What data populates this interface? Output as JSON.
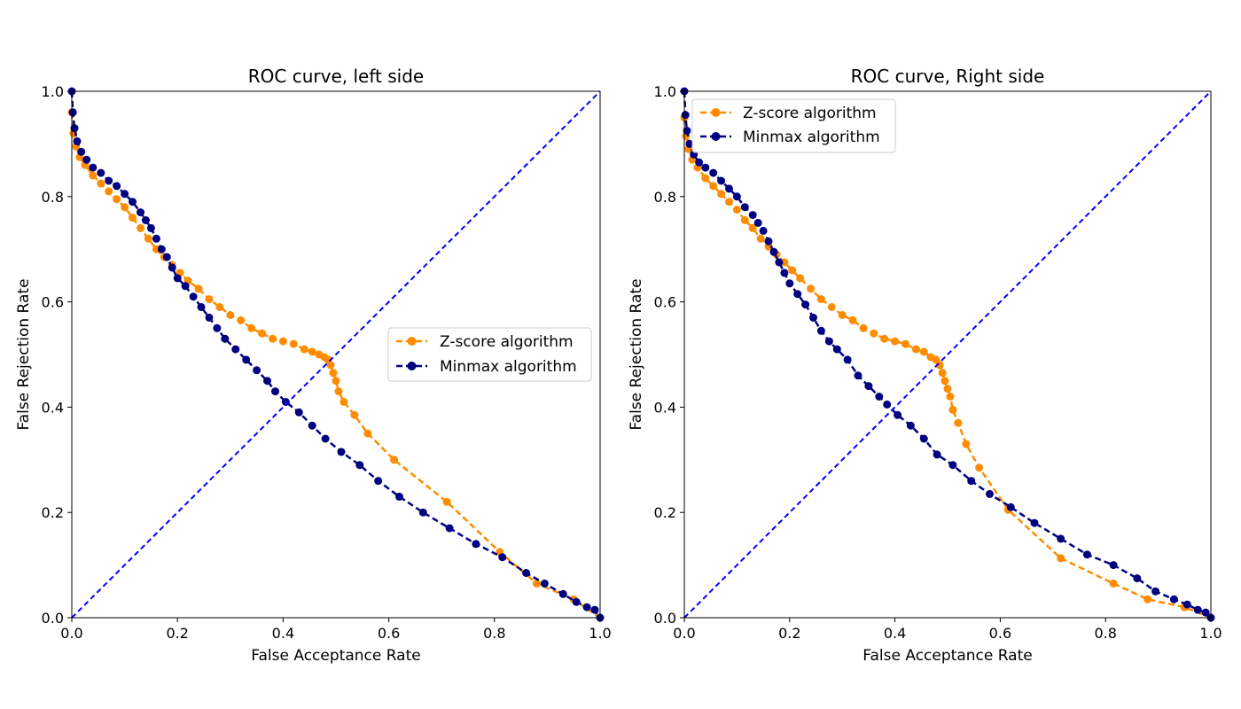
{
  "chart_data": [
    {
      "type": "line",
      "title": "ROC curve, left side",
      "xlabel": "False Acceptance Rate",
      "ylabel": "False Rejection Rate",
      "xlim": [
        0,
        1
      ],
      "ylim": [
        0,
        1
      ],
      "xticks": [
        "0.0",
        "0.2",
        "0.4",
        "0.6",
        "0.8",
        "1.0"
      ],
      "yticks": [
        "0.0",
        "0.2",
        "0.4",
        "0.6",
        "0.8",
        "1.0"
      ],
      "grid": false,
      "legend_position": "center-right",
      "series": [
        {
          "name": "Z-score algorithm",
          "color": "#ff8c00",
          "style": "dashed-with-circle-markers",
          "x": [
            0.0,
            0.003,
            0.008,
            0.015,
            0.025,
            0.04,
            0.055,
            0.07,
            0.085,
            0.1,
            0.115,
            0.13,
            0.145,
            0.16,
            0.175,
            0.19,
            0.205,
            0.22,
            0.24,
            0.26,
            0.28,
            0.3,
            0.32,
            0.34,
            0.36,
            0.38,
            0.4,
            0.42,
            0.44,
            0.455,
            0.468,
            0.478,
            0.485,
            0.49,
            0.495,
            0.5,
            0.505,
            0.515,
            0.535,
            0.56,
            0.61,
            0.71,
            0.81,
            0.88,
            0.95,
            1.0
          ],
          "y": [
            0.96,
            0.92,
            0.895,
            0.875,
            0.86,
            0.84,
            0.825,
            0.81,
            0.795,
            0.78,
            0.76,
            0.74,
            0.72,
            0.7,
            0.685,
            0.67,
            0.655,
            0.64,
            0.625,
            0.605,
            0.59,
            0.575,
            0.565,
            0.55,
            0.54,
            0.53,
            0.525,
            0.52,
            0.51,
            0.505,
            0.5,
            0.495,
            0.49,
            0.48,
            0.465,
            0.45,
            0.43,
            0.41,
            0.385,
            0.35,
            0.3,
            0.22,
            0.125,
            0.065,
            0.035,
            0.0
          ]
        },
        {
          "name": "Minmax algorithm",
          "color": "#000080",
          "style": "dashed-with-circle-markers",
          "x": [
            0.0,
            0.002,
            0.005,
            0.01,
            0.018,
            0.028,
            0.04,
            0.055,
            0.07,
            0.085,
            0.1,
            0.115,
            0.13,
            0.14,
            0.15,
            0.16,
            0.17,
            0.18,
            0.19,
            0.2,
            0.215,
            0.23,
            0.245,
            0.26,
            0.275,
            0.29,
            0.31,
            0.33,
            0.35,
            0.37,
            0.385,
            0.405,
            0.43,
            0.455,
            0.48,
            0.51,
            0.545,
            0.58,
            0.62,
            0.665,
            0.715,
            0.765,
            0.815,
            0.86,
            0.895,
            0.93,
            0.955,
            0.975,
            0.99,
            1.0
          ],
          "y": [
            1.0,
            0.96,
            0.93,
            0.905,
            0.885,
            0.87,
            0.855,
            0.845,
            0.83,
            0.82,
            0.805,
            0.79,
            0.77,
            0.755,
            0.74,
            0.72,
            0.7,
            0.685,
            0.665,
            0.645,
            0.63,
            0.61,
            0.59,
            0.57,
            0.55,
            0.53,
            0.51,
            0.49,
            0.47,
            0.45,
            0.43,
            0.41,
            0.39,
            0.365,
            0.34,
            0.315,
            0.29,
            0.26,
            0.23,
            0.2,
            0.17,
            0.14,
            0.115,
            0.085,
            0.065,
            0.045,
            0.03,
            0.02,
            0.015,
            0.0
          ]
        },
        {
          "color": "#0000ff",
          "style": "dashed",
          "x": [
            0,
            1
          ],
          "y": [
            0,
            1
          ]
        }
      ]
    },
    {
      "type": "line",
      "title": "ROC curve, Right side",
      "xlabel": "False Acceptance Rate",
      "ylabel": "False Rejection Rate",
      "xlim": [
        0,
        1
      ],
      "ylim": [
        0,
        1
      ],
      "xticks": [
        "0.0",
        "0.2",
        "0.4",
        "0.6",
        "0.8",
        "1.0"
      ],
      "yticks": [
        "0.0",
        "0.2",
        "0.4",
        "0.6",
        "0.8",
        "1.0"
      ],
      "grid": false,
      "legend_position": "upper-left",
      "series": [
        {
          "name": "Z-score algorithm",
          "color": "#ff8c00",
          "style": "dashed-with-circle-markers",
          "x": [
            0.0,
            0.003,
            0.008,
            0.015,
            0.025,
            0.04,
            0.055,
            0.07,
            0.085,
            0.1,
            0.115,
            0.13,
            0.145,
            0.16,
            0.175,
            0.19,
            0.205,
            0.22,
            0.24,
            0.26,
            0.28,
            0.3,
            0.32,
            0.34,
            0.36,
            0.38,
            0.4,
            0.42,
            0.44,
            0.455,
            0.468,
            0.478,
            0.485,
            0.49,
            0.495,
            0.5,
            0.505,
            0.51,
            0.52,
            0.535,
            0.56,
            0.615,
            0.715,
            0.815,
            0.88,
            0.95,
            1.0
          ],
          "y": [
            0.95,
            0.915,
            0.89,
            0.87,
            0.855,
            0.835,
            0.82,
            0.805,
            0.79,
            0.775,
            0.755,
            0.74,
            0.72,
            0.705,
            0.69,
            0.675,
            0.66,
            0.645,
            0.625,
            0.605,
            0.59,
            0.575,
            0.565,
            0.55,
            0.54,
            0.53,
            0.525,
            0.52,
            0.51,
            0.505,
            0.495,
            0.49,
            0.48,
            0.465,
            0.45,
            0.435,
            0.42,
            0.395,
            0.37,
            0.33,
            0.285,
            0.205,
            0.113,
            0.065,
            0.035,
            0.02,
            0.0
          ]
        },
        {
          "name": "Minmax algorithm",
          "color": "#000080",
          "style": "dashed-with-circle-markers",
          "x": [
            0.0,
            0.002,
            0.005,
            0.01,
            0.018,
            0.028,
            0.04,
            0.055,
            0.07,
            0.085,
            0.1,
            0.115,
            0.13,
            0.14,
            0.15,
            0.16,
            0.17,
            0.18,
            0.19,
            0.2,
            0.215,
            0.23,
            0.245,
            0.26,
            0.275,
            0.29,
            0.31,
            0.33,
            0.35,
            0.37,
            0.385,
            0.405,
            0.43,
            0.455,
            0.48,
            0.51,
            0.545,
            0.58,
            0.62,
            0.665,
            0.715,
            0.765,
            0.815,
            0.86,
            0.895,
            0.93,
            0.955,
            0.975,
            0.99,
            1.0
          ],
          "y": [
            1.0,
            0.955,
            0.925,
            0.9,
            0.88,
            0.865,
            0.855,
            0.845,
            0.83,
            0.815,
            0.8,
            0.78,
            0.765,
            0.75,
            0.735,
            0.715,
            0.695,
            0.675,
            0.655,
            0.635,
            0.615,
            0.595,
            0.57,
            0.545,
            0.525,
            0.51,
            0.49,
            0.46,
            0.44,
            0.42,
            0.405,
            0.385,
            0.365,
            0.34,
            0.31,
            0.29,
            0.26,
            0.235,
            0.21,
            0.18,
            0.15,
            0.12,
            0.1,
            0.075,
            0.05,
            0.035,
            0.025,
            0.015,
            0.01,
            0.0
          ]
        },
        {
          "color": "#0000ff",
          "style": "dashed",
          "x": [
            0,
            1
          ],
          "y": [
            0,
            1
          ]
        }
      ]
    }
  ]
}
